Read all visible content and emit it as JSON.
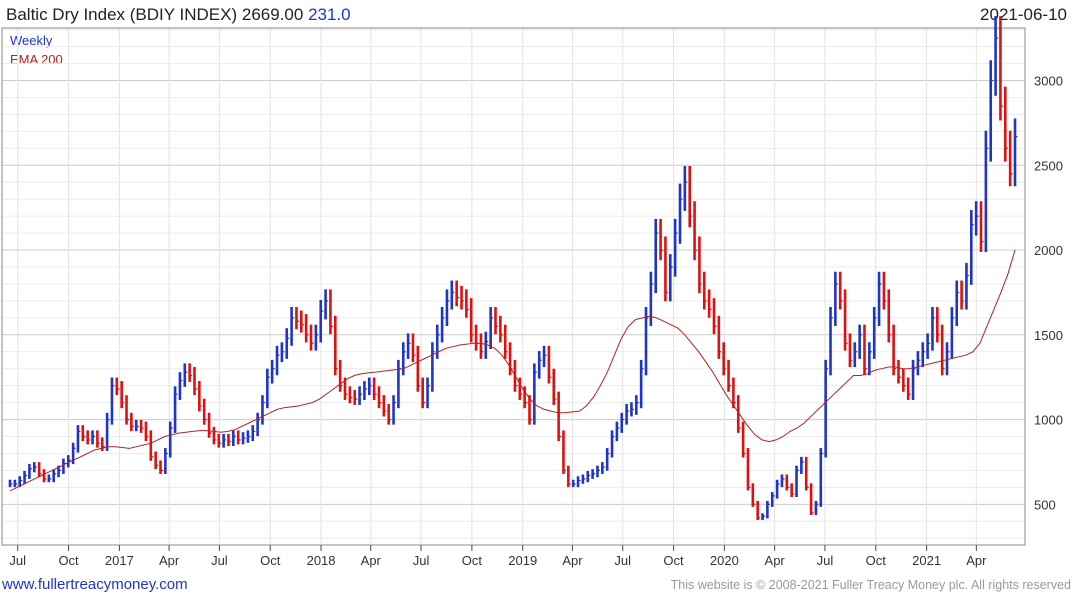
{
  "header": {
    "title": "Baltic Dry Index (BDIY INDEX)",
    "last": "2669.00",
    "change": "231.0",
    "date": "2021-06-10"
  },
  "footer": {
    "site": "www.fullertreacymoney.com",
    "copyright": "This website is © 2008-2021 Fuller Treacy Money plc. All rights reserved"
  },
  "colors": {
    "up": "#1f35c8",
    "down": "#e01010",
    "ema": "#b22222",
    "grid": "#dddddd"
  },
  "chart_data": {
    "type": "ohlc",
    "series": [
      {
        "name": "Weekly",
        "color": "#1f35c8"
      },
      {
        "name": "EMA 200",
        "color": "#b22222"
      }
    ],
    "x_tick_labels": [
      "Jul",
      "Oct",
      "2017",
      "Apr",
      "Jul",
      "Oct",
      "2018",
      "Apr",
      "Jul",
      "Oct",
      "2019",
      "Apr",
      "Jul",
      "Oct",
      "2020",
      "Apr",
      "Jul",
      "Oct",
      "2021",
      "Apr"
    ],
    "x_range": [
      "2016-06-17",
      "2021-06-10"
    ],
    "ylim": [
      260,
      3310
    ],
    "y_ticks": [
      500,
      1000,
      1500,
      2000,
      2500,
      3000
    ],
    "grid": true,
    "legend": "top-left",
    "weekly_close": [
      620,
      620,
      640,
      670,
      710,
      720,
      680,
      650,
      650,
      680,
      700,
      740,
      760,
      830,
      930,
      900,
      880,
      900,
      860,
      840,
      1000,
      1200,
      1180,
      1100,
      1000,
      960,
      960,
      950,
      900,
      780,
      730,
      700,
      800,
      950,
      1150,
      1230,
      1280,
      1260,
      1180,
      1080,
      1000,
      920,
      880,
      860,
      880,
      870,
      900,
      880,
      890,
      900,
      930,
      1000,
      1100,
      1250,
      1300,
      1380,
      1400,
      1480,
      1600,
      1580,
      1560,
      1500,
      1450,
      1500,
      1640,
      1700,
      1550,
      1300,
      1200,
      1150,
      1130,
      1120,
      1150,
      1180,
      1200,
      1150,
      1100,
      1050,
      1000,
      1100,
      1300,
      1400,
      1450,
      1380,
      1200,
      1100,
      1200,
      1400,
      1500,
      1600,
      1700,
      1750,
      1720,
      1700,
      1650,
      1500,
      1450,
      1400,
      1460,
      1600,
      1550,
      1500,
      1400,
      1300,
      1200,
      1150,
      1100,
      1000,
      1280,
      1350,
      1380,
      1250,
      1120,
      900,
      700,
      620,
      620,
      640,
      650,
      670,
      680,
      700,
      720,
      800,
      900,
      950,
      1000,
      1050,
      1060,
      1100,
      1300,
      1600,
      1800,
      2100,
      2000,
      1750,
      1900,
      2100,
      2300,
      2400,
      2200,
      2000,
      1800,
      1700,
      1650,
      1550,
      1400,
      1300,
      1200,
      1100,
      950,
      800,
      600,
      500,
      420,
      430,
      500,
      550,
      620,
      650,
      600,
      560,
      700,
      750,
      600,
      450,
      500,
      800,
      1300,
      1600,
      1800,
      1700,
      1450,
      1350,
      1400,
      1500,
      1300,
      1400,
      1600,
      1800,
      1700,
      1500,
      1300,
      1250,
      1200,
      1150,
      1300,
      1350,
      1400,
      1450,
      1600,
      1500,
      1300,
      1400,
      1600,
      1750,
      1700,
      1850,
      2150,
      2200,
      2050,
      2600,
      3000,
      3250,
      2850,
      2600,
      2450,
      2669
    ],
    "ema_200": [
      580,
      600,
      620,
      640,
      660,
      680,
      700,
      720,
      740,
      760,
      780,
      800,
      820,
      830,
      840,
      840,
      835,
      830,
      840,
      850,
      860,
      880,
      900,
      910,
      920,
      925,
      930,
      935,
      935,
      930,
      925,
      930,
      940,
      960,
      980,
      1000,
      1020,
      1040,
      1060,
      1070,
      1075,
      1080,
      1090,
      1100,
      1120,
      1150,
      1180,
      1210,
      1240,
      1260,
      1270,
      1275,
      1280,
      1285,
      1290,
      1295,
      1300,
      1320,
      1340,
      1360,
      1380,
      1400,
      1420,
      1430,
      1440,
      1445,
      1450,
      1450,
      1440,
      1420,
      1380,
      1320,
      1250,
      1180,
      1120,
      1080,
      1060,
      1050,
      1040,
      1040,
      1045,
      1050,
      1080,
      1130,
      1200,
      1280,
      1380,
      1480,
      1550,
      1590,
      1600,
      1610,
      1600,
      1580,
      1560,
      1540,
      1500,
      1450,
      1400,
      1340,
      1280,
      1210,
      1140,
      1080,
      1020,
      960,
      910,
      880,
      870,
      880,
      900,
      930,
      950,
      980,
      1020,
      1060,
      1100,
      1140,
      1180,
      1220,
      1260,
      1260,
      1270,
      1290,
      1300,
      1310,
      1310,
      1300,
      1300,
      1310,
      1320,
      1330,
      1340,
      1350,
      1360,
      1370,
      1380,
      1400,
      1450,
      1550,
      1650,
      1750,
      1860,
      2000
    ]
  }
}
